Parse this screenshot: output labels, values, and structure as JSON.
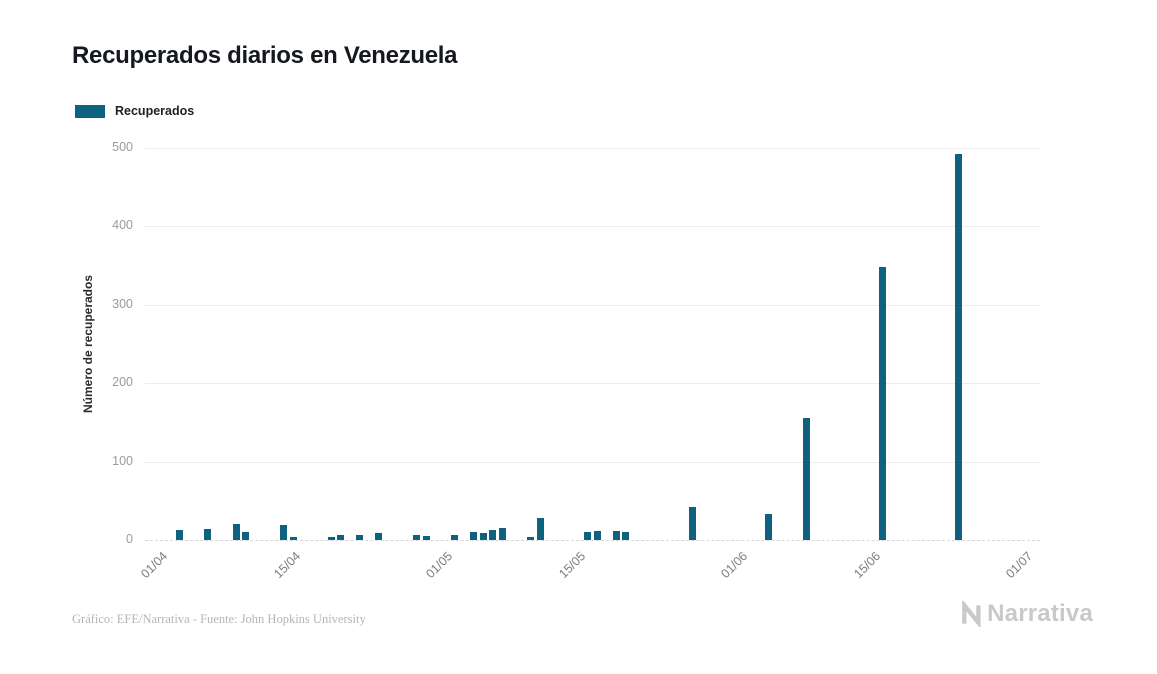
{
  "title": "Recuperados diarios en Venezuela",
  "legend": {
    "label": "Recuperados",
    "swatch_color": "#0e617f"
  },
  "footer": {
    "credit": "Gráfico: EFE/Narrativa - Fuente: John Hopkins University",
    "brand": "Narrativa"
  },
  "chart_data": {
    "type": "bar",
    "title": "Recuperados diarios en Venezuela",
    "series_name": "Recuperados",
    "xlabel": "",
    "ylabel": "Número de recuperados",
    "ylim": [
      0,
      500
    ],
    "yticks": [
      0,
      100,
      200,
      300,
      400,
      500
    ],
    "xticks": [
      "01/04",
      "15/04",
      "01/05",
      "15/05",
      "01/06",
      "15/06",
      "01/07"
    ],
    "x_start": "01/04",
    "x_end": "01/07",
    "bar_color": "#0e617f",
    "grid": true,
    "legend_position": "top-left",
    "points": [
      {
        "date": "03/04",
        "value": 13
      },
      {
        "date": "06/04",
        "value": 14
      },
      {
        "date": "09/04",
        "value": 20
      },
      {
        "date": "10/04",
        "value": 10
      },
      {
        "date": "14/04",
        "value": 19
      },
      {
        "date": "15/04",
        "value": 4
      },
      {
        "date": "19/04",
        "value": 4
      },
      {
        "date": "20/04",
        "value": 6
      },
      {
        "date": "22/04",
        "value": 6
      },
      {
        "date": "24/04",
        "value": 9
      },
      {
        "date": "28/04",
        "value": 6
      },
      {
        "date": "29/04",
        "value": 5
      },
      {
        "date": "02/05",
        "value": 7
      },
      {
        "date": "04/05",
        "value": 10
      },
      {
        "date": "05/05",
        "value": 9
      },
      {
        "date": "06/05",
        "value": 13
      },
      {
        "date": "07/05",
        "value": 15
      },
      {
        "date": "10/05",
        "value": 4
      },
      {
        "date": "11/05",
        "value": 28
      },
      {
        "date": "16/05",
        "value": 10
      },
      {
        "date": "17/05",
        "value": 12
      },
      {
        "date": "19/05",
        "value": 12
      },
      {
        "date": "20/05",
        "value": 10
      },
      {
        "date": "27/05",
        "value": 42
      },
      {
        "date": "04/06",
        "value": 33
      },
      {
        "date": "08/06",
        "value": 155
      },
      {
        "date": "16/06",
        "value": 348
      },
      {
        "date": "24/06",
        "value": 493
      }
    ]
  }
}
